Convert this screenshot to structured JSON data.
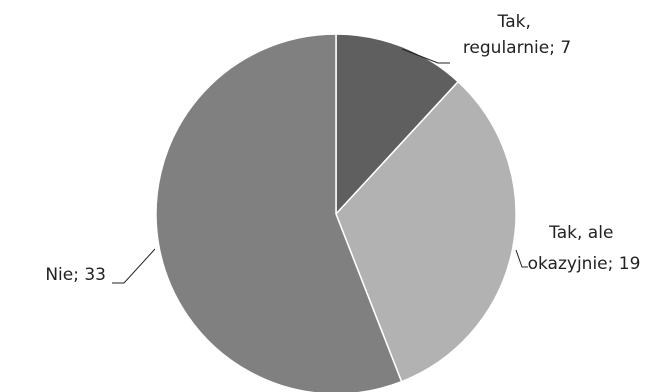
{
  "chart_data": {
    "type": "pie",
    "start_angle_deg": 0,
    "direction": "clockwise",
    "slices": [
      {
        "label_lines": [
          "Tak,",
          "regularnie; 7"
        ],
        "value": 7,
        "color": "#5f5f5f"
      },
      {
        "label_lines": [
          "Tak, ale",
          "okazyjnie; 19"
        ],
        "value": 19,
        "color": "#b2b2b2"
      },
      {
        "label_lines": [
          "Nie; 33"
        ],
        "value": 33,
        "color": "#808080"
      }
    ],
    "legend": "none"
  }
}
